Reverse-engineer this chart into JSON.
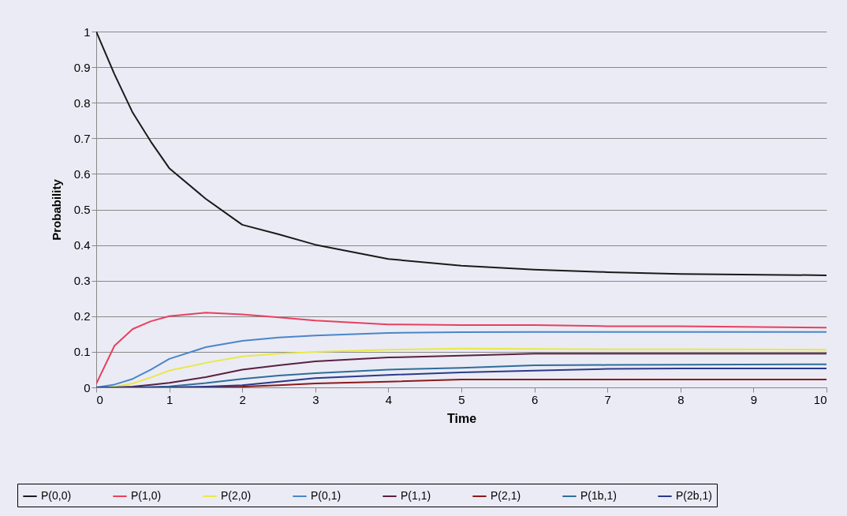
{
  "chart_data": {
    "type": "line",
    "xlabel": "Time",
    "ylabel": "Probability",
    "x": [
      0,
      0.25,
      0.5,
      0.75,
      1,
      1.5,
      2,
      2.5,
      3,
      4,
      5,
      6,
      7,
      8,
      10
    ],
    "series": [
      {
        "name": "P(0,0)",
        "color": "#1a1a1a",
        "values": [
          1,
          0.88,
          0.772,
          0.69,
          0.616,
          0.53,
          0.457,
          0.43,
          0.401,
          0.361,
          0.342,
          0.331,
          0.324,
          0.319,
          0.315
        ]
      },
      {
        "name": "P(1,0)",
        "color": "#e8405e",
        "values": [
          0.01,
          0.117,
          0.164,
          0.186,
          0.2,
          0.21,
          0.205,
          0.197,
          0.188,
          0.177,
          0.175,
          0.175,
          0.172,
          0.172,
          0.168
        ]
      },
      {
        "name": "P(2,0)",
        "color": "#e8e84a",
        "values": [
          0,
          0.002,
          0.011,
          0.028,
          0.047,
          0.069,
          0.087,
          0.095,
          0.1,
          0.106,
          0.109,
          0.108,
          0.107,
          0.107,
          0.106
        ]
      },
      {
        "name": "P(0,1)",
        "color": "#4a86c8",
        "values": [
          0,
          0.008,
          0.024,
          0.05,
          0.08,
          0.113,
          0.131,
          0.14,
          0.146,
          0.153,
          0.155,
          0.156,
          0.156,
          0.156,
          0.156
        ]
      },
      {
        "name": "P(1,1)",
        "color": "#5a2040",
        "values": [
          0,
          0,
          0.002,
          0.007,
          0.013,
          0.029,
          0.05,
          0.062,
          0.073,
          0.084,
          0.089,
          0.095,
          0.095,
          0.095,
          0.095
        ]
      },
      {
        "name": "P(2,1)",
        "color": "#8b1a1a",
        "values": [
          0,
          0,
          0,
          0,
          0,
          0.001,
          0.002,
          0.006,
          0.011,
          0.016,
          0.022,
          0.022,
          0.022,
          0.022,
          0.022
        ]
      },
      {
        "name": "P(1b,1)",
        "color": "#2e6e9a",
        "values": [
          0,
          0,
          0,
          0.001,
          0.003,
          0.012,
          0.024,
          0.033,
          0.04,
          0.05,
          0.055,
          0.062,
          0.063,
          0.064,
          0.065
        ]
      },
      {
        "name": "P(2b,1)",
        "color": "#2a3a8a",
        "values": [
          0,
          0,
          0,
          0,
          0,
          0.002,
          0.006,
          0.016,
          0.026,
          0.035,
          0.042,
          0.047,
          0.052,
          0.053,
          0.053
        ]
      }
    ],
    "xlim": [
      0,
      10
    ],
    "xticks": [
      0,
      1,
      2,
      3,
      4,
      5,
      6,
      7,
      8,
      9,
      10
    ],
    "ylim": [
      0,
      1
    ],
    "yticks": [
      0,
      0.1,
      0.2,
      0.3,
      0.4,
      0.5,
      0.6,
      0.7,
      0.8,
      0.9,
      1
    ],
    "grid": "y",
    "legend": "bottom",
    "marker": "none",
    "line_style": "solid"
  }
}
